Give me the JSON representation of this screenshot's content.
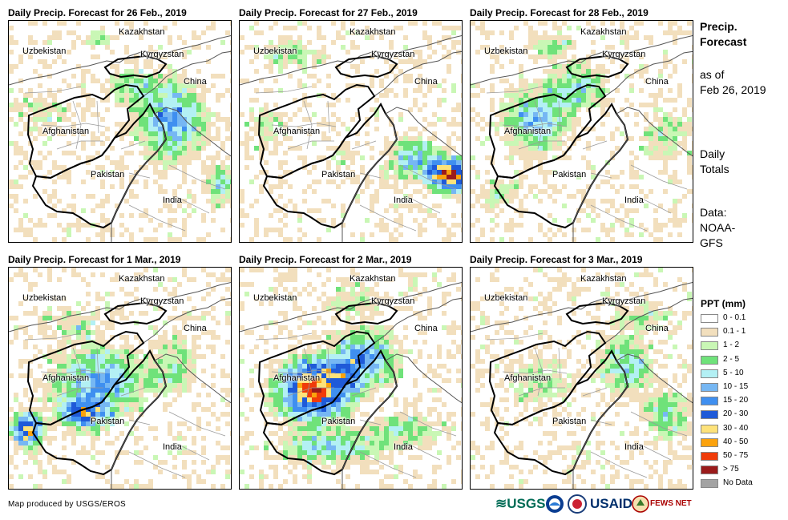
{
  "panels": [
    {
      "title": "Daily Precip. Forecast for 26 Feb., 2019"
    },
    {
      "title": "Daily Precip. Forecast for 27 Feb., 2019"
    },
    {
      "title": "Daily Precip. Forecast for 28 Feb., 2019"
    },
    {
      "title": "Daily Precip. Forecast for 1 Mar., 2019"
    },
    {
      "title": "Daily Precip. Forecast for 2 Mar., 2019"
    },
    {
      "title": "Daily Precip. Forecast for 3 Mar., 2019"
    }
  ],
  "countries": {
    "kazakhstan": "Kazakhstan",
    "uzbekistan": "Uzbekistan",
    "kyrgyzstan": "Kyrgyzstan",
    "china": "China",
    "afghanistan": "Afghanistan",
    "pakistan": "Pakistan",
    "india": "India"
  },
  "sidebar": {
    "title_line1": "Precip.",
    "title_line2": "Forecast",
    "asof_line1": "as of",
    "asof_line2": "Feb 26, 2019",
    "daily_line1": "Daily",
    "daily_line2": "Totals",
    "data_line1": "Data:",
    "data_line2": "NOAA-",
    "data_line3": "GFS"
  },
  "legend": {
    "title": "PPT (mm)",
    "items": [
      {
        "label": "0 - 0.1",
        "color": "#ffffff"
      },
      {
        "label": "0.1 - 1",
        "color": "#f2dfbd"
      },
      {
        "label": "1 - 2",
        "color": "#c9f7b5"
      },
      {
        "label": "2 - 5",
        "color": "#6fe27a"
      },
      {
        "label": "5 - 10",
        "color": "#b3f0f4"
      },
      {
        "label": "10 - 15",
        "color": "#76b7f3"
      },
      {
        "label": "15 - 20",
        "color": "#3f8ff0"
      },
      {
        "label": "20 - 30",
        "color": "#1f5ad8"
      },
      {
        "label": "30 - 40",
        "color": "#fde27a"
      },
      {
        "label": "40 - 50",
        "color": "#fba20d"
      },
      {
        "label": "50 - 75",
        "color": "#f03b09"
      },
      {
        "label": "> 75",
        "color": "#9a1b1b"
      },
      {
        "label": "No Data",
        "color": "#a3a3a3"
      }
    ]
  },
  "footer": {
    "credit": "Map produced by USGS/EROS",
    "logo_usgs": "≋USGS",
    "logo_usaid": "USAID",
    "logo_fews": "FEWS NET"
  }
}
